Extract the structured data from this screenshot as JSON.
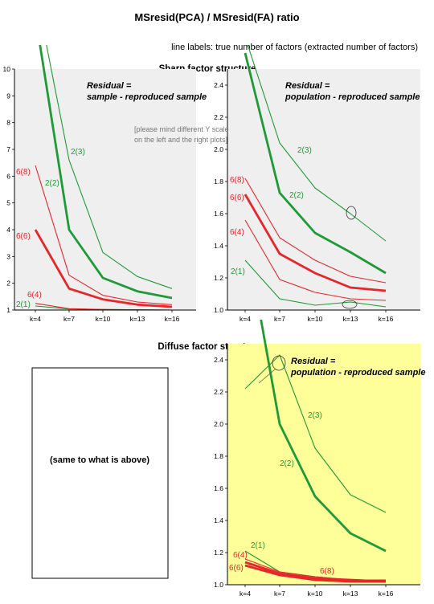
{
  "title": "MSresid(PCA) / MSresid(FA) ratio",
  "subtitle": "line labels: true number of factors (extracted number of factors)",
  "sections": {
    "sharp": "Sharp factor structure",
    "diffuse": "Diffuse factor structure"
  },
  "note": [
    "[please mind different Y scale",
    "on the left and the right plots]"
  ],
  "placeholder_text": "(same to what is above)",
  "colors": {
    "red": "#e8262a",
    "green": "#1e9a36",
    "sharp_bg": "#efefef",
    "diffuse_bg": "#ffff99"
  },
  "chart_data": [
    {
      "id": "sharp_sample",
      "type": "line",
      "categories": [
        "k=4",
        "k=7",
        "k=10",
        "k=13",
        "k=16"
      ],
      "ylim": [
        1,
        10
      ],
      "yticks": [
        "1",
        "2",
        "3",
        "4",
        "5",
        "6",
        "7",
        "8",
        "9",
        "10"
      ],
      "annotation": [
        "Residual =",
        "sample - reproduced sample"
      ],
      "series": [
        {
          "name": "2(3)",
          "color": "green",
          "bold": false,
          "values": [
            13.0,
            6.6,
            3.15,
            2.25,
            1.8
          ]
        },
        {
          "name": "2(2)",
          "color": "green",
          "bold": true,
          "values": [
            12.0,
            4.0,
            2.2,
            1.7,
            1.45
          ]
        },
        {
          "name": "2(1)",
          "color": "green",
          "bold": false,
          "values": [
            1.15,
            1.04,
            1.02,
            1.01,
            1.0
          ]
        },
        {
          "name": "6(8)",
          "color": "red",
          "bold": false,
          "values": [
            6.4,
            2.3,
            1.55,
            1.3,
            1.2
          ]
        },
        {
          "name": "6(6)",
          "color": "red",
          "bold": true,
          "values": [
            4.0,
            1.8,
            1.4,
            1.2,
            1.12
          ]
        },
        {
          "name": "6(4)",
          "color": "red",
          "bold": false,
          "values": [
            1.25,
            1.05,
            1.02,
            1.01,
            1.0
          ]
        }
      ]
    },
    {
      "id": "sharp_population",
      "type": "line",
      "categories": [
        "k=4",
        "k=7",
        "k=10",
        "k=13",
        "k=16"
      ],
      "ylim": [
        1.0,
        2.5
      ],
      "yticks": [
        "1.0",
        "1.2",
        "1.4",
        "1.6",
        "1.8",
        "2.0",
        "2.2",
        "2.4"
      ],
      "annotation": [
        "Residual =",
        "population - reproduced sample"
      ],
      "series": [
        {
          "name": "2(3)",
          "color": "green",
          "bold": false,
          "values": [
            2.7,
            2.04,
            1.76,
            1.6,
            1.43
          ]
        },
        {
          "name": "2(2)",
          "color": "green",
          "bold": true,
          "values": [
            2.6,
            1.73,
            1.48,
            1.36,
            1.23
          ]
        },
        {
          "name": "2(1)",
          "color": "green",
          "bold": false,
          "values": [
            1.31,
            1.07,
            1.03,
            1.05,
            1.02
          ]
        },
        {
          "name": "6(8)",
          "color": "red",
          "bold": false,
          "values": [
            1.82,
            1.45,
            1.31,
            1.21,
            1.17
          ]
        },
        {
          "name": "6(6)",
          "color": "red",
          "bold": true,
          "values": [
            1.72,
            1.35,
            1.23,
            1.14,
            1.12
          ]
        },
        {
          "name": "6(4)",
          "color": "red",
          "bold": false,
          "values": [
            1.56,
            1.19,
            1.11,
            1.07,
            1.06
          ]
        }
      ]
    },
    {
      "id": "diffuse_population",
      "type": "line",
      "categories": [
        "k=4",
        "k=7",
        "k=10",
        "k=13",
        "k=16"
      ],
      "ylim": [
        1.0,
        2.5
      ],
      "yticks": [
        "1.0",
        "1.2",
        "1.4",
        "1.6",
        "1.8",
        "2.0",
        "2.2",
        "2.4"
      ],
      "annotation": [
        "Residual =",
        "population - reproduced sample"
      ],
      "series": [
        {
          "name": "2(3)",
          "color": "green",
          "bold": false,
          "values": [
            2.22,
            2.43,
            1.85,
            1.56,
            1.45
          ]
        },
        {
          "name": "2(2)",
          "color": "green",
          "bold": true,
          "values": [
            3.2,
            2.0,
            1.55,
            1.32,
            1.21
          ]
        },
        {
          "name": "2(1)",
          "color": "green",
          "bold": false,
          "values": [
            1.21,
            1.08,
            1.05,
            1.03,
            1.02
          ]
        },
        {
          "name": "6(4)",
          "color": "red",
          "bold": false,
          "values": [
            1.16,
            1.08,
            1.05,
            1.03,
            1.03
          ]
        },
        {
          "name": "6(8)",
          "color": "red",
          "bold": true,
          "values": [
            1.14,
            1.07,
            1.04,
            1.03,
            1.02
          ]
        },
        {
          "name": "6(6)",
          "color": "red",
          "bold": true,
          "values": [
            1.12,
            1.06,
            1.03,
            1.02,
            1.02
          ]
        }
      ]
    }
  ]
}
